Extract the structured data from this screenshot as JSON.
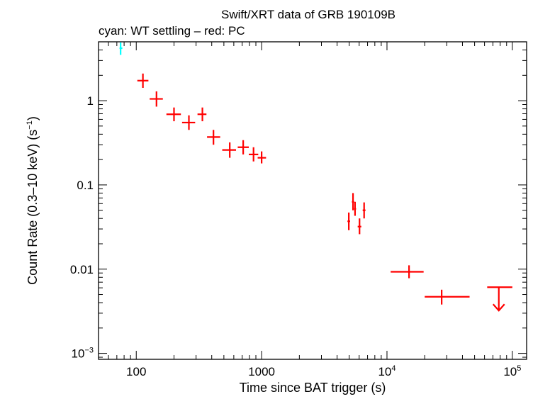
{
  "chart_data": {
    "type": "scatter",
    "title": "Swift/XRT data of GRB 190109B",
    "subtitle": "cyan: WT settling – red: PC",
    "xlabel": "Time since BAT trigger (s)",
    "ylabel": {
      "main": "Count Rate (0.3–10 keV) (s",
      "sup": "−1",
      "close": ")"
    },
    "x_scale": "log",
    "y_scale": "log",
    "xlim": [
      50,
      130000
    ],
    "ylim": [
      0.00085,
      5
    ],
    "x_ticks": [
      {
        "value": 100,
        "base": "100",
        "sup": ""
      },
      {
        "value": 1000,
        "base": "1000",
        "sup": ""
      },
      {
        "value": 10000,
        "base": "10",
        "sup": "4"
      },
      {
        "value": 100000,
        "base": "10",
        "sup": "5"
      }
    ],
    "y_ticks": [
      {
        "value": 1,
        "base": "1",
        "sup": ""
      },
      {
        "value": 0.1,
        "base": "0.1",
        "sup": ""
      },
      {
        "value": 0.01,
        "base": "0.01",
        "sup": ""
      },
      {
        "value": 0.001,
        "base": "10",
        "sup": "−3"
      }
    ],
    "series": [
      {
        "name": "WT settling",
        "color": "#00ffff",
        "points": [
          {
            "x": 75,
            "xlo": 73.5,
            "xhi": 77.5,
            "y": 4.2,
            "ylo": 3.5,
            "yhi": 4.9
          }
        ]
      },
      {
        "name": "PC",
        "color": "#ff0000",
        "points": [
          {
            "x": 113,
            "xlo": 102,
            "xhi": 125,
            "y": 1.73,
            "ylo": 1.42,
            "yhi": 2.1
          },
          {
            "x": 145,
            "xlo": 128,
            "xhi": 163,
            "y": 1.05,
            "ylo": 0.85,
            "yhi": 1.29
          },
          {
            "x": 200,
            "xlo": 174,
            "xhi": 227,
            "y": 0.69,
            "ylo": 0.57,
            "yhi": 0.83
          },
          {
            "x": 263,
            "xlo": 232,
            "xhi": 295,
            "y": 0.55,
            "ylo": 0.45,
            "yhi": 0.67
          },
          {
            "x": 337,
            "xlo": 308,
            "xhi": 363,
            "y": 0.69,
            "ylo": 0.57,
            "yhi": 0.83
          },
          {
            "x": 413,
            "xlo": 367,
            "xhi": 467,
            "y": 0.37,
            "ylo": 0.3,
            "yhi": 0.45
          },
          {
            "x": 557,
            "xlo": 485,
            "xhi": 625,
            "y": 0.26,
            "ylo": 0.21,
            "yhi": 0.32
          },
          {
            "x": 713,
            "xlo": 645,
            "xhi": 790,
            "y": 0.28,
            "ylo": 0.23,
            "yhi": 0.34
          },
          {
            "x": 862,
            "xlo": 790,
            "xhi": 940,
            "y": 0.23,
            "ylo": 0.19,
            "yhi": 0.28
          },
          {
            "x": 1000,
            "xlo": 930,
            "xhi": 1085,
            "y": 0.21,
            "ylo": 0.18,
            "yhi": 0.25
          },
          {
            "x": 4960,
            "xlo": 4840,
            "xhi": 5080,
            "y": 0.037,
            "ylo": 0.029,
            "yhi": 0.047
          },
          {
            "x": 5360,
            "xlo": 5250,
            "xhi": 5470,
            "y": 0.063,
            "ylo": 0.05,
            "yhi": 0.08
          },
          {
            "x": 5560,
            "xlo": 5450,
            "xhi": 5670,
            "y": 0.052,
            "ylo": 0.043,
            "yhi": 0.063
          },
          {
            "x": 6040,
            "xlo": 5840,
            "xhi": 6240,
            "y": 0.032,
            "ylo": 0.026,
            "yhi": 0.04
          },
          {
            "x": 6570,
            "xlo": 6400,
            "xhi": 6740,
            "y": 0.05,
            "ylo": 0.04,
            "yhi": 0.062
          },
          {
            "x": 15000,
            "xlo": 10700,
            "xhi": 19600,
            "y": 0.0093,
            "ylo": 0.0078,
            "yhi": 0.0111
          },
          {
            "x": 27300,
            "xlo": 20000,
            "xhi": 45600,
            "y": 0.0047,
            "ylo": 0.0038,
            "yhi": 0.0057
          }
        ]
      }
    ],
    "upper_limits": [
      {
        "x": 78000,
        "xlo": 63000,
        "xhi": 100000,
        "y": 0.0061,
        "color": "#ff0000"
      }
    ],
    "grid": false
  }
}
